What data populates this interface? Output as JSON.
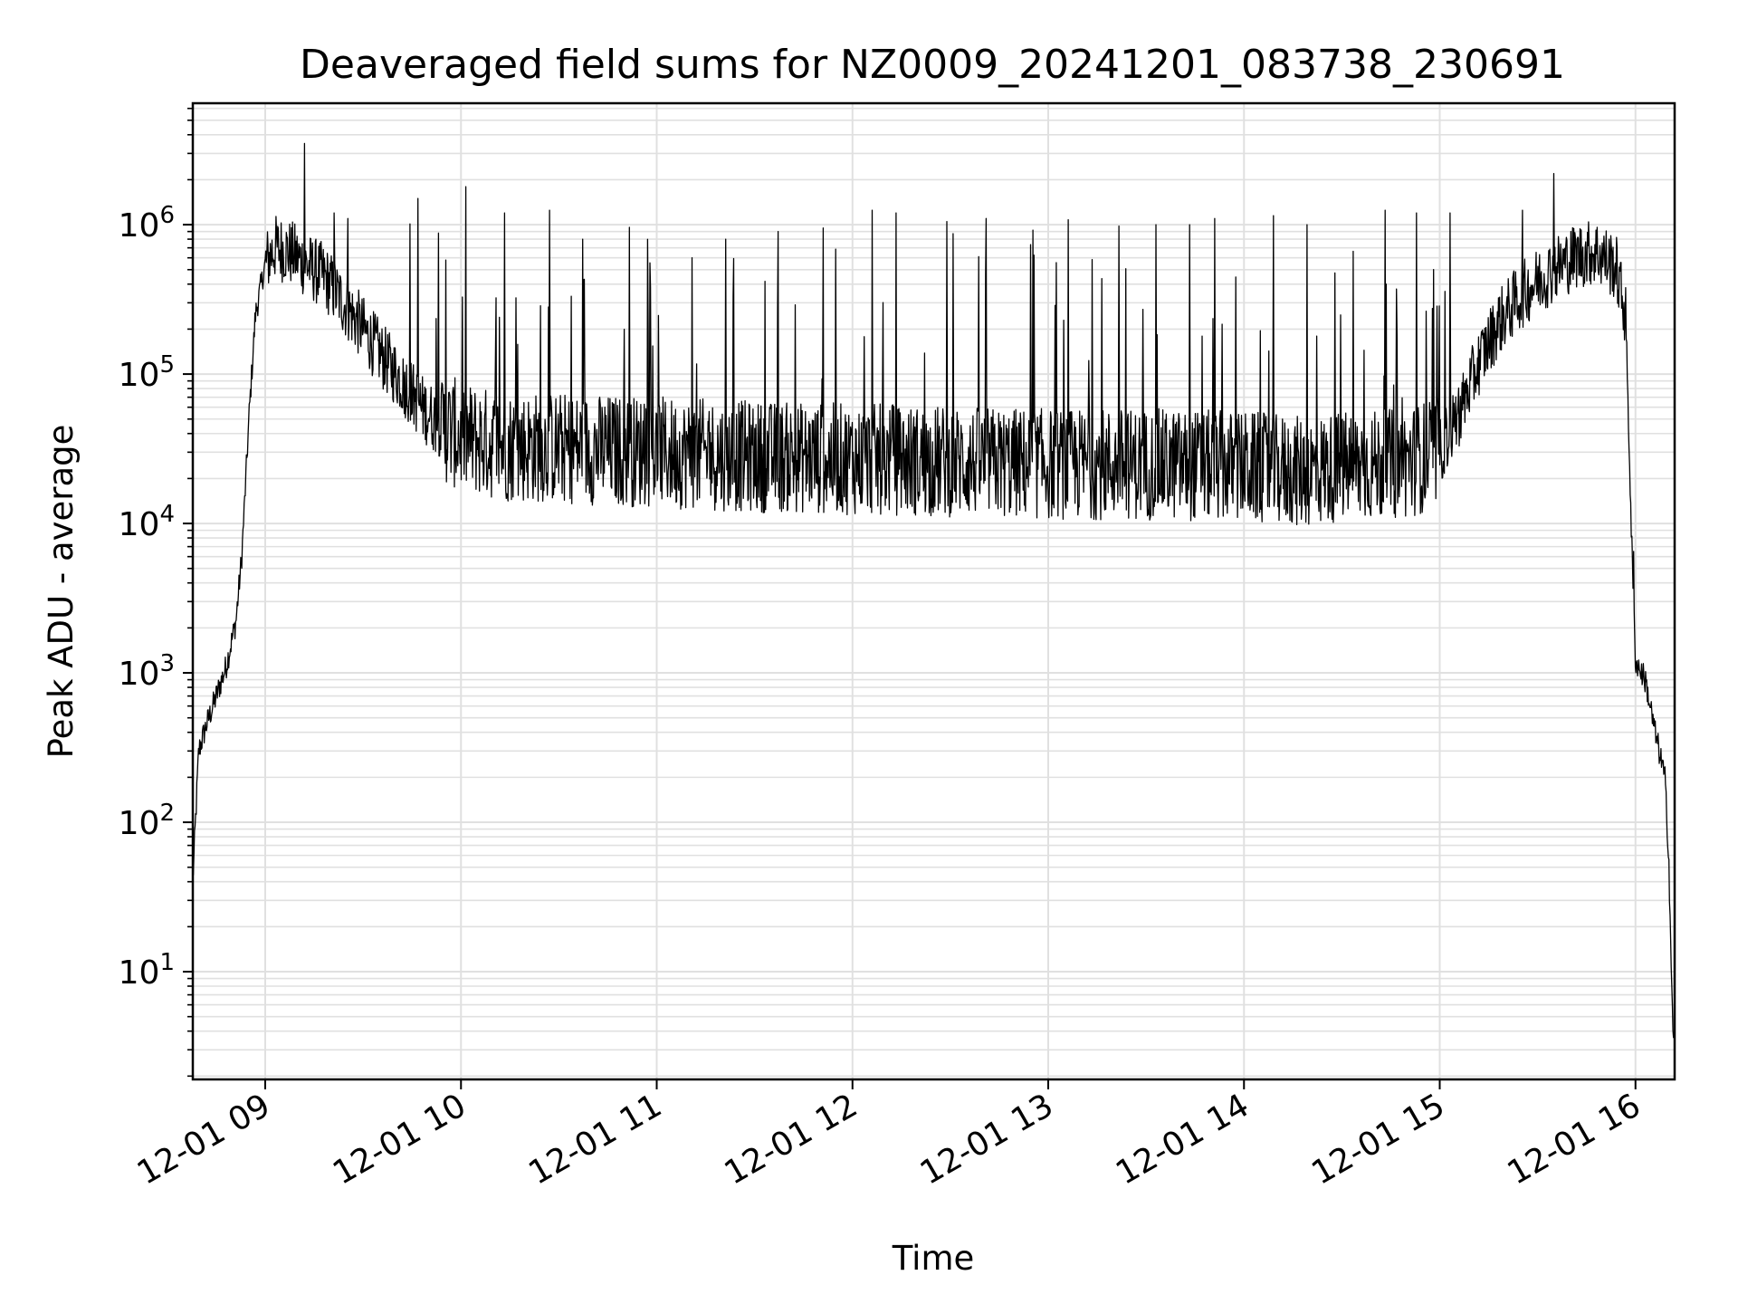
{
  "chart_data": {
    "type": "line",
    "title": "Deaveraged field sums for NZ0009_20241201_083738_230691",
    "xlabel": "Time",
    "ylabel": "Peak ADU - average",
    "yscale": "log",
    "x_unit": "hour of day",
    "xlim": [
      8.63,
      16.2
    ],
    "ylim": [
      1.9,
      6500000
    ],
    "x_ticks": [
      {
        "x": 9,
        "label": "12-01 09"
      },
      {
        "x": 10,
        "label": "12-01 10"
      },
      {
        "x": 11,
        "label": "12-01 11"
      },
      {
        "x": 12,
        "label": "12-01 12"
      },
      {
        "x": 13,
        "label": "12-01 13"
      },
      {
        "x": 14,
        "label": "12-01 14"
      },
      {
        "x": 15,
        "label": "12-01 15"
      },
      {
        "x": 16,
        "label": "12-01 16"
      }
    ],
    "y_ticks": [
      {
        "value": 10,
        "base": "10",
        "exp": "1"
      },
      {
        "value": 100,
        "base": "10",
        "exp": "2"
      },
      {
        "value": 1000,
        "base": "10",
        "exp": "3"
      },
      {
        "value": 10000,
        "base": "10",
        "exp": "4"
      },
      {
        "value": 100000,
        "base": "10",
        "exp": "5"
      },
      {
        "value": 1000000,
        "base": "10",
        "exp": "6"
      }
    ],
    "grid": true,
    "grid_color": "#e0e0e0",
    "line_color": "#000000",
    "series": [
      {
        "name": "",
        "envelope": [
          [
            8.63,
            40
          ],
          [
            8.66,
            300
          ],
          [
            8.7,
            450
          ],
          [
            8.75,
            700
          ],
          [
            8.8,
            1100
          ],
          [
            8.85,
            2200
          ],
          [
            8.88,
            6000
          ],
          [
            8.92,
            60000
          ],
          [
            8.95,
            250000
          ],
          [
            9.0,
            550000
          ],
          [
            9.05,
            700000
          ],
          [
            9.1,
            680000
          ],
          [
            9.15,
            620000
          ],
          [
            9.2,
            550000
          ],
          [
            9.3,
            450000
          ],
          [
            9.4,
            300000
          ],
          [
            9.5,
            200000
          ],
          [
            9.6,
            130000
          ],
          [
            9.7,
            90000
          ],
          [
            9.8,
            60000
          ],
          [
            9.9,
            45000
          ],
          [
            10.0,
            38000
          ],
          [
            10.2,
            33000
          ],
          [
            10.5,
            32000
          ],
          [
            11.0,
            30000
          ],
          [
            11.5,
            28000
          ],
          [
            12.0,
            27000
          ],
          [
            12.5,
            26000
          ],
          [
            13.0,
            25000
          ],
          [
            13.5,
            25000
          ],
          [
            14.0,
            24000
          ],
          [
            14.3,
            22000
          ],
          [
            14.5,
            24000
          ],
          [
            14.8,
            25000
          ],
          [
            15.0,
            30000
          ],
          [
            15.1,
            55000
          ],
          [
            15.2,
            120000
          ],
          [
            15.3,
            220000
          ],
          [
            15.4,
            320000
          ],
          [
            15.5,
            420000
          ],
          [
            15.6,
            520000
          ],
          [
            15.7,
            620000
          ],
          [
            15.8,
            660000
          ],
          [
            15.9,
            520000
          ],
          [
            15.95,
            250000
          ],
          [
            15.98,
            8000
          ],
          [
            16.0,
            1200
          ],
          [
            16.05,
            900
          ],
          [
            16.1,
            400
          ],
          [
            16.15,
            200
          ],
          [
            16.17,
            60
          ],
          [
            16.19,
            4
          ],
          [
            16.2,
            4
          ]
        ],
        "spikes": [
          [
            9.2,
            3500000
          ],
          [
            9.35,
            1200000
          ],
          [
            9.42,
            1100000
          ],
          [
            9.78,
            1500000
          ],
          [
            9.92,
            580000
          ],
          [
            10.22,
            1200000
          ],
          [
            10.45,
            1250000
          ],
          [
            10.62,
            800000
          ],
          [
            10.86,
            960000
          ],
          [
            11.18,
            600000
          ],
          [
            11.35,
            800000
          ],
          [
            11.62,
            900000
          ],
          [
            11.85,
            950000
          ],
          [
            12.1,
            1250000
          ],
          [
            12.22,
            1200000
          ],
          [
            12.48,
            1050000
          ],
          [
            12.68,
            1100000
          ],
          [
            12.92,
            920000
          ],
          [
            13.1,
            1080000
          ],
          [
            13.36,
            980000
          ],
          [
            13.55,
            1000000
          ],
          [
            13.72,
            1000000
          ],
          [
            13.85,
            1100000
          ],
          [
            14.15,
            1150000
          ],
          [
            14.32,
            1000000
          ],
          [
            14.72,
            1250000
          ],
          [
            14.88,
            1200000
          ],
          [
            15.05,
            1200000
          ],
          [
            15.42,
            1250000
          ],
          [
            15.58,
            2200000
          ],
          [
            15.99,
            6500
          ]
        ]
      }
    ]
  }
}
